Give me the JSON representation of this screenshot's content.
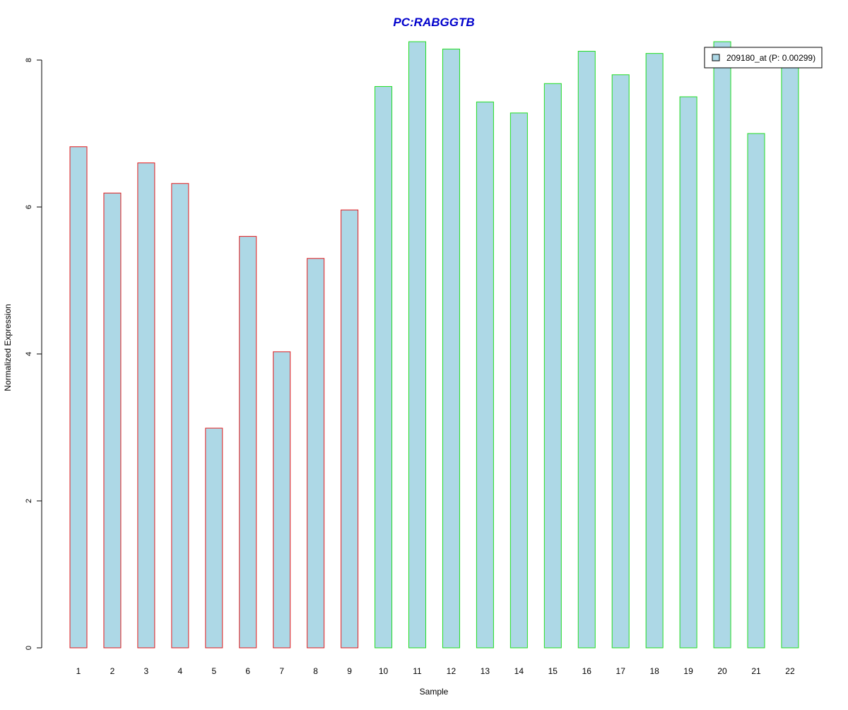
{
  "chart_data": {
    "type": "bar",
    "title": "PC:RABGGTB",
    "xlabel": "Sample",
    "ylabel": "Normalized Expression",
    "categories": [
      "1",
      "2",
      "3",
      "4",
      "5",
      "6",
      "7",
      "8",
      "9",
      "10",
      "11",
      "12",
      "13",
      "14",
      "15",
      "16",
      "17",
      "18",
      "19",
      "20",
      "21",
      "22"
    ],
    "series": [
      {
        "name": "209180_at (P: 0.00299)",
        "values": [
          6.82,
          6.19,
          6.6,
          6.32,
          2.99,
          5.6,
          4.03,
          5.3,
          5.96,
          7.64,
          8.25,
          8.15,
          7.43,
          7.28,
          7.68,
          8.12,
          7.8,
          8.09,
          7.5,
          8.25,
          7.0,
          8.0
        ]
      }
    ],
    "group_border_colors": [
      "#e31a1c",
      "#e31a1c",
      "#e31a1c",
      "#e31a1c",
      "#e31a1c",
      "#e31a1c",
      "#e31a1c",
      "#e31a1c",
      "#e31a1c",
      "#22dd22",
      "#22dd22",
      "#22dd22",
      "#22dd22",
      "#22dd22",
      "#22dd22",
      "#22dd22",
      "#22dd22",
      "#22dd22",
      "#22dd22",
      "#22dd22",
      "#22dd22",
      "#22dd22"
    ],
    "bar_fill": "#add8e6",
    "title_color": "#0000cc",
    "y_ticks": [
      0,
      2,
      4,
      6,
      8
    ],
    "ylim": [
      0,
      8.25
    ],
    "grid": false,
    "legend_position": "top-right"
  }
}
